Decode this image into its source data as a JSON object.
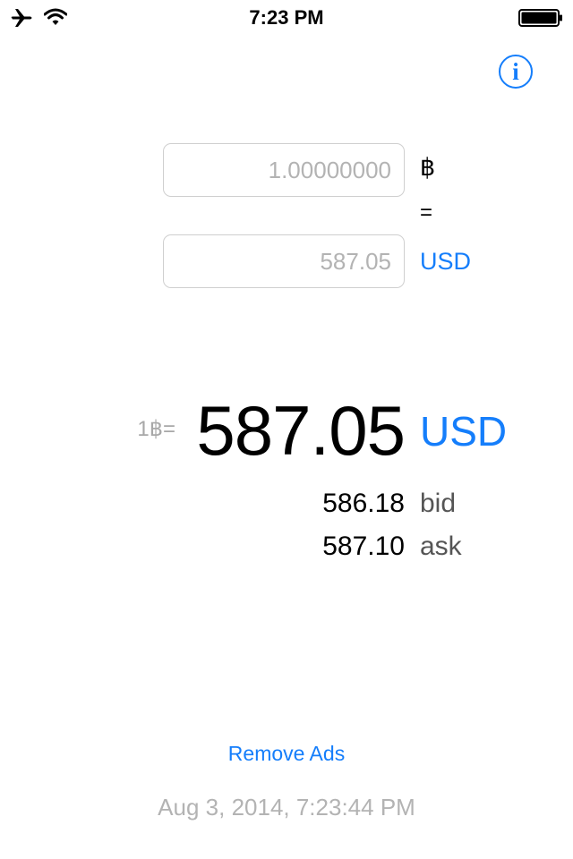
{
  "status_bar": {
    "time": "7:23 PM",
    "icons": [
      "airplane-icon",
      "wifi-icon",
      "battery-icon"
    ]
  },
  "converter": {
    "btc_input": {
      "placeholder": "1.00000000"
    },
    "btc_symbol": "฿",
    "equals": "=",
    "fiat_input": {
      "placeholder": "587.05"
    },
    "fiat_currency": "USD"
  },
  "rate": {
    "prefix": "1฿=",
    "value": "587.05",
    "currency": "USD",
    "bid": {
      "value": "586.18",
      "label": "bid"
    },
    "ask": {
      "value": "587.10",
      "label": "ask"
    }
  },
  "footer": {
    "remove_ads": "Remove Ads",
    "timestamp": "Aug 3, 2014, 7:23:44 PM"
  },
  "colors": {
    "accent": "#157efb",
    "muted_text": "#b3b3b3",
    "label_text": "#555555"
  }
}
